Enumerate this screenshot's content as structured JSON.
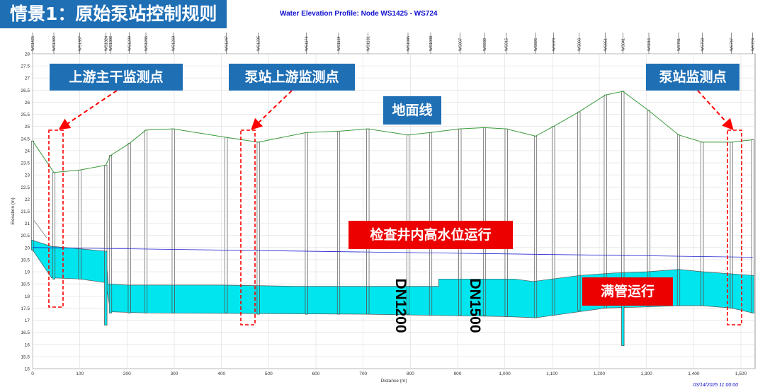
{
  "scenario_title": "情景1：原始泵站控制规则",
  "chart_title": "Water Elevation Profile: Node WS1425 - WS724",
  "timestamp": "03/14/2025 11:00:00",
  "callouts": {
    "upstream_trunk": "上游主干监测点",
    "pump_upstream": "泵站上游监测点",
    "pump_station": "泵站监测点",
    "ground_line": "地面线",
    "high_level": "检查井内高水位运行",
    "full_pipe": "满管运行",
    "dn1200": "DN1200",
    "dn1500": "DN1500"
  },
  "colors": {
    "ground": "#3a9a3a",
    "hgl": "#2020d0",
    "water": "#00e5ee",
    "callout_blue": "#1f6fb5",
    "callout_red": "#ec0000",
    "marker": "#ff0000"
  },
  "chart_data": {
    "type": "profile",
    "title": "Water Elevation Profile: Node WS1425 - WS724",
    "xlabel": "Distance (m)",
    "ylabel": "Elevation (m)",
    "xlim": [
      0,
      1530
    ],
    "ylim": [
      15,
      28
    ],
    "x_ticks": [
      0,
      100,
      200,
      300,
      400,
      500,
      600,
      700,
      800,
      900,
      1000,
      1100,
      1200,
      1300,
      1400,
      1500
    ],
    "x_tick_labels": [
      "0",
      "100",
      "200",
      "300",
      "400",
      "500",
      "600",
      "700",
      "800",
      "900",
      "1,000",
      "1,100",
      "1,200",
      "1,300",
      "1,400",
      "1,500"
    ],
    "y_ticks": [
      15,
      15.5,
      16,
      16.5,
      17,
      17.5,
      18,
      18.5,
      19,
      19.5,
      20,
      20.5,
      21,
      21.5,
      22,
      22.5,
      23,
      23.5,
      24,
      24.5,
      25,
      25.5,
      26,
      26.5,
      27,
      27.5,
      28
    ],
    "y_tick_labels": [
      "15",
      "15.5",
      "16",
      "16.5",
      "17",
      "17.5",
      "18",
      "18.5",
      "19",
      "19.5",
      "20",
      "20.5",
      "21",
      "21.5",
      "22",
      "22.5",
      "23",
      "23.5",
      "24",
      "24.5",
      "25",
      "25.5",
      "26",
      "26.5",
      "27",
      "27.5",
      "28"
    ],
    "grid": true,
    "nodes": [
      {
        "name": "WS1425",
        "x": 0,
        "ground": 24.4,
        "invert": 19.9,
        "bottom": 19.9
      },
      {
        "name": "WS1392",
        "x": 45,
        "ground": 23.1,
        "invert": 18.7,
        "bottom": 18.7
      },
      {
        "name": "WS1357",
        "x": 100,
        "ground": 23.2,
        "invert": 18.7,
        "bottom": 18.7
      },
      {
        "name": "WS1324",
        "x": 155,
        "ground": 23.4,
        "invert": 18.6,
        "bottom": 16.8
      },
      {
        "name": "WS1306",
        "x": 165,
        "ground": 23.8,
        "invert": 17.3,
        "bottom": 17.3
      },
      {
        "name": "WS1299",
        "x": 205,
        "ground": 24.3,
        "invert": 17.3,
        "bottom": 17.3
      },
      {
        "name": "WS1285",
        "x": 240,
        "ground": 24.85,
        "invert": 17.3,
        "bottom": 17.3
      },
      {
        "name": "WS1263",
        "x": 298,
        "ground": 24.9,
        "invert": 17.3,
        "bottom": 17.3
      },
      {
        "name": "WS1247",
        "x": 410,
        "ground": 24.55,
        "invert": 17.3,
        "bottom": 17.3
      },
      {
        "name": "WS1235",
        "x": 478,
        "ground": 24.35,
        "invert": 17.25,
        "bottom": 17.25
      },
      {
        "name": "WS1174",
        "x": 580,
        "ground": 24.75,
        "invert": 17.25,
        "bottom": 17.25
      },
      {
        "name": "WS1154",
        "x": 648,
        "ground": 24.8,
        "invert": 17.25,
        "bottom": 17.25
      },
      {
        "name": "WS1131",
        "x": 710,
        "ground": 24.9,
        "invert": 17.25,
        "bottom": 17.25
      },
      {
        "name": "WS1045",
        "x": 795,
        "ground": 24.65,
        "invert": 17.25,
        "bottom": 17.25
      },
      {
        "name": "WS1008",
        "x": 843,
        "ground": 24.75,
        "invert": 17.2,
        "bottom": 17.2
      },
      {
        "name": "WS967",
        "x": 905,
        "ground": 24.9,
        "invert": 17.2,
        "bottom": 17.2
      },
      {
        "name": "WS930",
        "x": 957,
        "ground": 24.95,
        "invert": 17.2,
        "bottom": 17.2
      },
      {
        "name": "WS915",
        "x": 1003,
        "ground": 24.9,
        "invert": 17.15,
        "bottom": 17.15
      },
      {
        "name": "WS895",
        "x": 1065,
        "ground": 24.6,
        "invert": 17.1,
        "bottom": 17.1
      },
      {
        "name": "WS878",
        "x": 1103,
        "ground": 25.0,
        "invert": 17.2,
        "bottom": 17.2
      },
      {
        "name": "WS866",
        "x": 1157,
        "ground": 25.6,
        "invert": 17.4,
        "bottom": 17.4
      },
      {
        "name": "WS851",
        "x": 1213,
        "ground": 26.3,
        "invert": 17.5,
        "bottom": 17.5
      },
      {
        "name": "WS841",
        "x": 1250,
        "ground": 26.45,
        "invert": 17.5,
        "bottom": 15.95
      },
      {
        "name": "WS816",
        "x": 1305,
        "ground": 25.65,
        "invert": 17.55,
        "bottom": 17.55
      },
      {
        "name": "WS781",
        "x": 1368,
        "ground": 24.65,
        "invert": 17.6,
        "bottom": 17.6
      },
      {
        "name": "WS758",
        "x": 1418,
        "ground": 24.35,
        "invert": 17.6,
        "bottom": 17.6
      },
      {
        "name": "WS747",
        "x": 1480,
        "ground": 24.35,
        "invert": 17.5,
        "bottom": 17.5
      },
      {
        "name": "WS724",
        "x": 1525,
        "ground": 24.45,
        "invert": 17.3,
        "bottom": 17.3
      }
    ],
    "hgl": [
      [
        0,
        20.0
      ],
      [
        1525,
        19.6
      ]
    ],
    "water_top": [
      [
        0,
        20.3
      ],
      [
        40,
        20.05
      ],
      [
        100,
        19.95
      ],
      [
        155,
        19.85
      ],
      [
        160,
        18.5
      ],
      [
        200,
        18.45
      ],
      [
        400,
        18.45
      ],
      [
        560,
        18.4
      ],
      [
        700,
        18.4
      ],
      [
        860,
        18.4
      ],
      [
        860,
        18.7
      ],
      [
        1020,
        18.7
      ],
      [
        1060,
        18.6
      ],
      [
        1100,
        18.7
      ],
      [
        1160,
        18.85
      ],
      [
        1230,
        18.95
      ],
      [
        1300,
        19.0
      ],
      [
        1368,
        19.1
      ],
      [
        1420,
        19.0
      ],
      [
        1525,
        18.85
      ]
    ],
    "water_bottom": [
      [
        0,
        19.9
      ],
      [
        40,
        18.75
      ],
      [
        100,
        18.7
      ],
      [
        155,
        18.55
      ],
      [
        165,
        17.35
      ],
      [
        240,
        17.3
      ],
      [
        700,
        17.25
      ],
      [
        1003,
        17.15
      ],
      [
        1065,
        17.1
      ],
      [
        1103,
        17.2
      ],
      [
        1213,
        17.5
      ],
      [
        1305,
        17.55
      ],
      [
        1368,
        17.6
      ],
      [
        1418,
        17.6
      ],
      [
        1480,
        17.5
      ],
      [
        1525,
        17.3
      ]
    ],
    "lateral_inflow": [
      [
        0,
        21.2
      ],
      [
        30,
        20.4
      ]
    ]
  }
}
